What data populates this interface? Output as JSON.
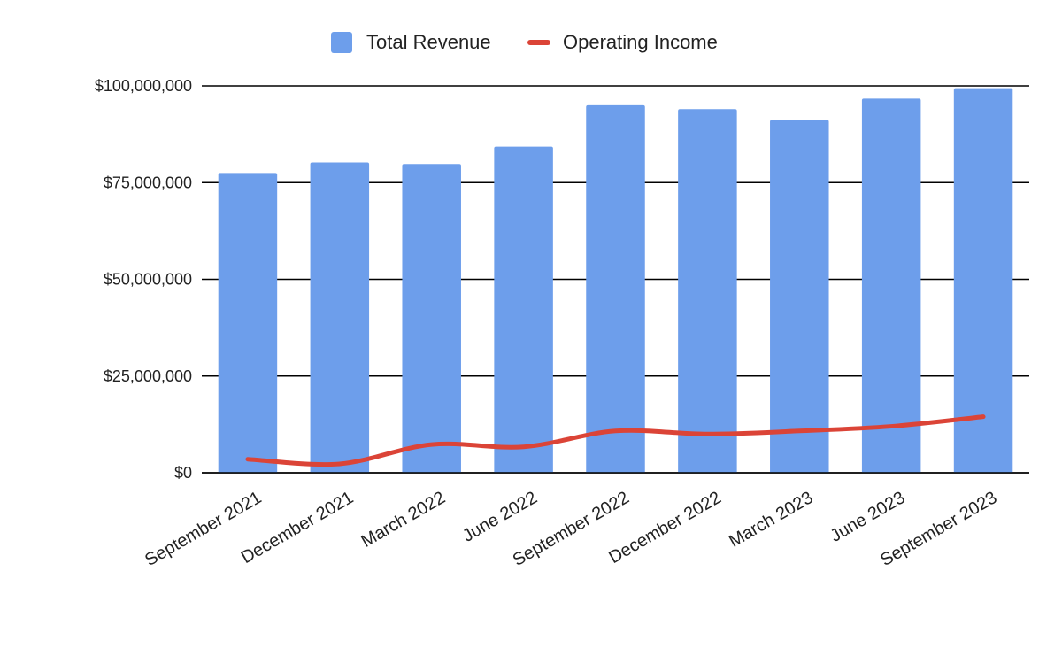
{
  "chart_data": {
    "type": "bar",
    "title": "",
    "xlabel": "",
    "ylabel": "",
    "categories": [
      "September 2021",
      "December 2021",
      "March 2022",
      "June 2022",
      "September 2022",
      "December 2022",
      "March 2023",
      "June 2023",
      "September 2023"
    ],
    "series": [
      {
        "name": "Total Revenue",
        "type": "bar",
        "color": "#6d9eeb",
        "values": [
          77500000,
          80200000,
          79800000,
          84300000,
          95000000,
          94000000,
          91200000,
          96700000,
          99400000
        ]
      },
      {
        "name": "Operating Income",
        "type": "line",
        "color": "#db4437",
        "values": [
          3500000,
          2300000,
          7300000,
          6700000,
          10800000,
          10000000,
          10800000,
          12000000,
          14500000
        ]
      }
    ],
    "ylim": [
      0,
      100000000
    ],
    "yticks": [
      0,
      25000000,
      50000000,
      75000000,
      100000000
    ],
    "ytick_labels": [
      "$0",
      "$25,000,000",
      "$50,000,000",
      "$75,000,000",
      "$100,000,000"
    ],
    "grid": true,
    "legend_position": "top"
  }
}
